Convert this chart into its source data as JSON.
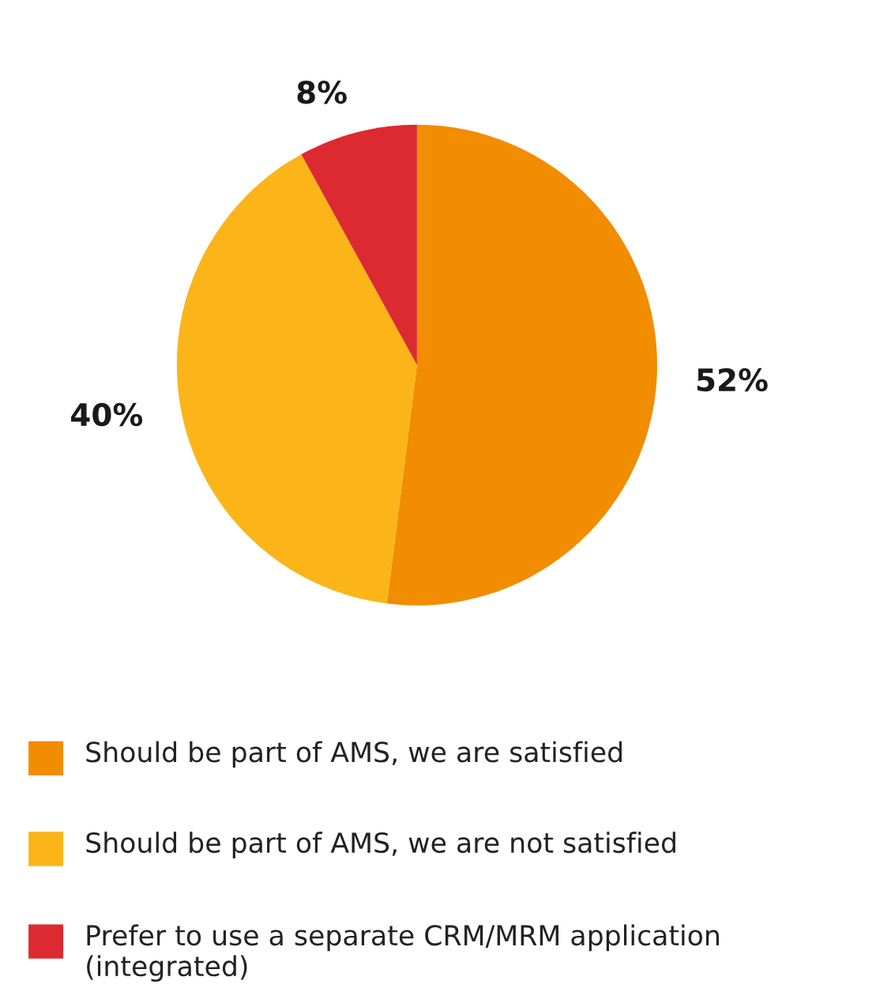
{
  "chart_data": {
    "type": "pie",
    "categories": [
      "Should be part of AMS, we are satisfied",
      "Should be part of AMS, we are not satisfied",
      "Prefer to use a separate CRM/MRM application (integrated)"
    ],
    "values": [
      52,
      40,
      8
    ],
    "colors": [
      "#f28c00",
      "#fbb519",
      "#dc2a30"
    ],
    "value_labels": [
      "52%",
      "40%",
      "8%"
    ],
    "legend": "bottom"
  }
}
